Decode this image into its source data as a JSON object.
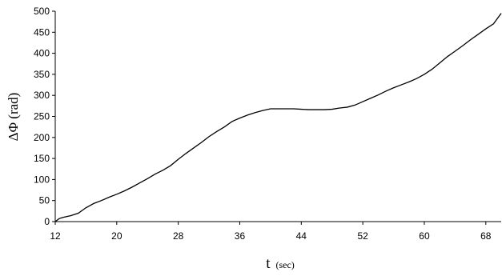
{
  "chart_data": {
    "type": "line",
    "title": "",
    "xlabel_main": "t",
    "xlabel_unit": "(sec)",
    "ylabel": "ΔΦ (rad)",
    "xlim": [
      12,
      70
    ],
    "ylim": [
      0,
      500
    ],
    "x_ticks": [
      12,
      20,
      28,
      36,
      44,
      52,
      60,
      68
    ],
    "y_ticks": [
      0,
      50,
      100,
      150,
      200,
      250,
      300,
      350,
      400,
      450,
      500
    ],
    "grid": false,
    "legend": "none",
    "line_color": "#000000",
    "series": [
      {
        "x": [
          12,
          12.5,
          13,
          14,
          15,
          16,
          17,
          18,
          19,
          20,
          21,
          22,
          23,
          24,
          25,
          26,
          27,
          28,
          29,
          30,
          31,
          32,
          33,
          34,
          35,
          36,
          37,
          38,
          39,
          40,
          41,
          42,
          43,
          44,
          45,
          46,
          47,
          48,
          49,
          50,
          51,
          52,
          53,
          54,
          55,
          56,
          57,
          58,
          59,
          60,
          61,
          62,
          63,
          64,
          65,
          66,
          67,
          68,
          69,
          70
        ],
        "y": [
          0,
          7,
          10,
          14,
          20,
          33,
          43,
          50,
          58,
          65,
          73,
          82,
          92,
          102,
          113,
          122,
          133,
          148,
          162,
          175,
          188,
          202,
          214,
          225,
          238,
          246,
          253,
          259,
          264,
          268,
          268,
          268,
          268,
          267,
          266,
          266,
          266,
          267,
          270,
          272,
          277,
          285,
          293,
          301,
          310,
          318,
          325,
          332,
          340,
          350,
          362,
          377,
          392,
          405,
          418,
          432,
          445,
          458,
          470,
          495
        ]
      }
    ]
  }
}
